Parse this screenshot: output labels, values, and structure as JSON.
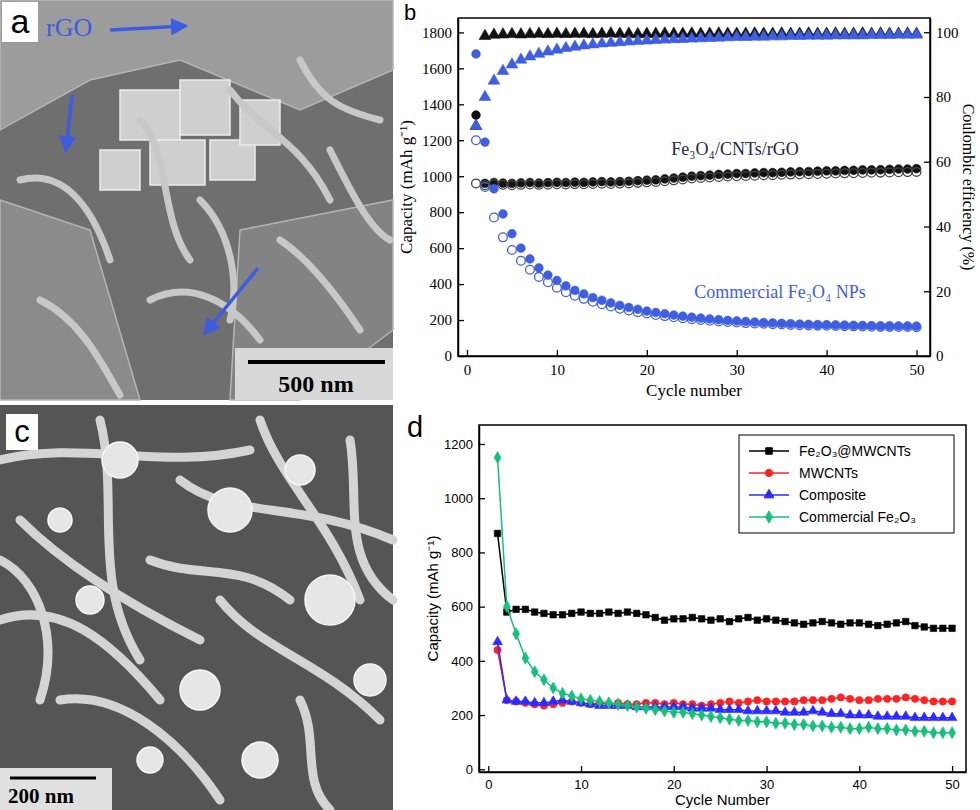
{
  "panel_labels": [
    "a",
    "b",
    "c",
    "d"
  ],
  "images": [
    {
      "annotation": "rGO",
      "scale_bar": "500 nm"
    },
    {
      "scale_bar": "200 nm"
    }
  ],
  "chart_data": [
    {
      "type": "scatter",
      "x_label": "Cycle number",
      "y_label": "Capacity (mAh g⁻¹)",
      "y2_label": "Coulombic efficiency (%)",
      "xlim": [
        -1,
        51.5
      ],
      "xticks": [
        0,
        10,
        20,
        30,
        40,
        50
      ],
      "ylim": [
        0,
        1880
      ],
      "yticks": [
        0,
        200,
        400,
        600,
        800,
        1000,
        1200,
        1400,
        1600,
        1800
      ],
      "y2lim": [
        0,
        104.4
      ],
      "y2ticks": [
        0,
        20,
        40,
        60,
        80,
        100
      ],
      "annotations": [
        {
          "text": "Fe₃O₄/CNTs/rGO",
          "color": "#1b2a49"
        },
        {
          "text": "Commercial Fe₃O₄ NPs",
          "color": "#3f5fe0"
        }
      ],
      "x": [
        1,
        2,
        3,
        4,
        5,
        6,
        7,
        8,
        9,
        10,
        11,
        12,
        13,
        14,
        15,
        16,
        17,
        18,
        19,
        20,
        21,
        22,
        23,
        24,
        25,
        26,
        27,
        28,
        29,
        30,
        31,
        32,
        33,
        34,
        35,
        36,
        37,
        38,
        39,
        40,
        41,
        42,
        43,
        44,
        45,
        46,
        47,
        48,
        49,
        50
      ],
      "series": [
        {
          "color": "#111111",
          "marker": "circle",
          "values": [
            1340,
            960,
            965,
            962,
            960,
            963,
            965,
            962,
            964,
            966,
            965,
            967,
            966,
            968,
            970,
            968,
            970,
            972,
            975,
            978,
            980,
            985,
            990,
            995,
            1000,
            1003,
            1006,
            1010,
            1012,
            1015,
            1015,
            1018,
            1020,
            1020,
            1022,
            1024,
            1025,
            1026,
            1028,
            1030,
            1030,
            1032,
            1033,
            1035,
            1035,
            1036,
            1038,
            1040,
            1040,
            1042
          ]
        },
        {
          "color": "#444444",
          "marker": "circle-open",
          "values": [
            960,
            950,
            955,
            952,
            950,
            952,
            954,
            952,
            953,
            955,
            954,
            956,
            955,
            957,
            958,
            957,
            959,
            960,
            963,
            966,
            968,
            972,
            977,
            982,
            987,
            990,
            993,
            996,
            998,
            1000,
            1001,
            1003,
            1005,
            1006,
            1008,
            1009,
            1010,
            1011,
            1012,
            1014,
            1015,
            1016,
            1017,
            1018,
            1019,
            1020,
            1021,
            1022,
            1023,
            1024
          ]
        },
        {
          "color": "#3f5fe0",
          "marker": "circle",
          "values": [
            1680,
            1190,
            930,
            790,
            680,
            600,
            540,
            490,
            450,
            420,
            390,
            365,
            345,
            325,
            310,
            295,
            282,
            270,
            260,
            250,
            242,
            235,
            228,
            222,
            216,
            211,
            206,
            202,
            198,
            195,
            192,
            189,
            186,
            184,
            182,
            180,
            178,
            176,
            175,
            174,
            173,
            172,
            171,
            170,
            169,
            168,
            168,
            167,
            167,
            166
          ]
        },
        {
          "color": "#3f5fe0",
          "marker": "circle-open",
          "values": [
            1200,
            940,
            770,
            660,
            590,
            530,
            480,
            440,
            410,
            380,
            355,
            335,
            318,
            302,
            288,
            275,
            263,
            253,
            244,
            236,
            228,
            222,
            216,
            210,
            205,
            200,
            196,
            192,
            189,
            186,
            183,
            181,
            179,
            177,
            175,
            173,
            171,
            170,
            169,
            168,
            167,
            166,
            165,
            164,
            163,
            162,
            162,
            161,
            161,
            160
          ]
        },
        {
          "color": "#111111",
          "marker": "triangle",
          "axis": "y2",
          "values": [
            71,
            98.8,
            99.2,
            99.3,
            99.4,
            99.3,
            99.4,
            99.5,
            99.4,
            99.5,
            99.4,
            99.5,
            99.5,
            99.4,
            99.5,
            99.6,
            99.5,
            99.5,
            99.4,
            99.5,
            99.5,
            99.6,
            99.5,
            99.5,
            99.6,
            99.5,
            99.5,
            99.6,
            99.5,
            99.5,
            99.5,
            99.6,
            99.5,
            99.5,
            99.6,
            99.5,
            99.5,
            99.6,
            99.5,
            99.5,
            99.6,
            99.5,
            99.5,
            99.6,
            99.5,
            99.6,
            99.5,
            99.5,
            99.6,
            99.5
          ]
        },
        {
          "color": "#3f5fe0",
          "marker": "triangle",
          "axis": "y2",
          "values": [
            71,
            80,
            85,
            88,
            90,
            91.5,
            92.5,
            93.3,
            94,
            94.6,
            95.1,
            95.5,
            95.9,
            96.2,
            96.5,
            96.7,
            96.9,
            97.1,
            97.3,
            97.4,
            97.6,
            97.7,
            97.8,
            97.9,
            98,
            98.1,
            98.2,
            98.3,
            98.4,
            98.5,
            98.5,
            98.6,
            98.6,
            98.7,
            98.7,
            98.8,
            98.8,
            98.9,
            98.9,
            98.9,
            99,
            99,
            99,
            99,
            99.1,
            99.1,
            99.1,
            99.2,
            99.2,
            99.2
          ]
        }
      ]
    },
    {
      "type": "line",
      "x_label": "Cycle Number",
      "y_label": "Capacity (mAh g⁻¹)",
      "xlim": [
        -1,
        51.5
      ],
      "xticks": [
        0,
        10,
        20,
        30,
        40,
        50
      ],
      "ylim": [
        -10,
        1270
      ],
      "yticks": [
        0,
        200,
        400,
        600,
        800,
        1000,
        1200
      ],
      "legend": "top-right",
      "x": [
        1,
        2,
        3,
        4,
        5,
        6,
        7,
        8,
        9,
        10,
        11,
        12,
        13,
        14,
        15,
        16,
        17,
        18,
        19,
        20,
        21,
        22,
        23,
        24,
        25,
        26,
        27,
        28,
        29,
        30,
        31,
        32,
        33,
        34,
        35,
        36,
        37,
        38,
        39,
        40,
        41,
        42,
        43,
        44,
        45,
        46,
        47,
        48,
        49,
        50
      ],
      "series": [
        {
          "name": "Fe₂O₃@MWCNTs",
          "color": "#000000",
          "marker": "square",
          "values": [
            870,
            580,
            590,
            590,
            580,
            575,
            570,
            570,
            575,
            580,
            575,
            575,
            580,
            575,
            580,
            575,
            570,
            560,
            550,
            555,
            555,
            560,
            555,
            550,
            555,
            545,
            555,
            560,
            550,
            555,
            550,
            545,
            540,
            535,
            540,
            545,
            540,
            535,
            540,
            540,
            535,
            530,
            535,
            540,
            545,
            530,
            525,
            520,
            520,
            520
          ]
        },
        {
          "name": "MWCNTs",
          "color": "#ff2222",
          "marker": "circle",
          "values": [
            440,
            255,
            250,
            245,
            240,
            235,
            240,
            245,
            250,
            245,
            240,
            245,
            240,
            245,
            240,
            240,
            245,
            245,
            240,
            245,
            240,
            240,
            235,
            240,
            245,
            250,
            245,
            250,
            255,
            250,
            250,
            250,
            250,
            255,
            255,
            255,
            260,
            265,
            260,
            255,
            255,
            260,
            260,
            260,
            265,
            260,
            255,
            250,
            250,
            250
          ]
        },
        {
          "name": "Composite",
          "color": "#2b2bff",
          "marker": "triangle",
          "values": [
            470,
            255,
            250,
            250,
            245,
            245,
            250,
            255,
            250,
            245,
            240,
            235,
            235,
            235,
            235,
            230,
            230,
            230,
            230,
            230,
            230,
            225,
            225,
            225,
            220,
            220,
            220,
            215,
            215,
            215,
            215,
            210,
            210,
            210,
            215,
            210,
            205,
            205,
            200,
            200,
            200,
            195,
            195,
            195,
            195,
            190,
            190,
            190,
            190,
            190
          ]
        },
        {
          "name": "Commercial Fe₂O₃",
          "color": "#15c07a",
          "marker": "diamond",
          "values": [
            1150,
            600,
            500,
            410,
            360,
            330,
            300,
            280,
            270,
            260,
            255,
            250,
            245,
            240,
            235,
            230,
            225,
            220,
            215,
            210,
            210,
            205,
            200,
            195,
            190,
            185,
            180,
            180,
            175,
            175,
            170,
            170,
            165,
            165,
            160,
            160,
            155,
            155,
            150,
            150,
            155,
            150,
            150,
            145,
            145,
            140,
            140,
            135,
            135,
            135
          ]
        }
      ]
    }
  ]
}
